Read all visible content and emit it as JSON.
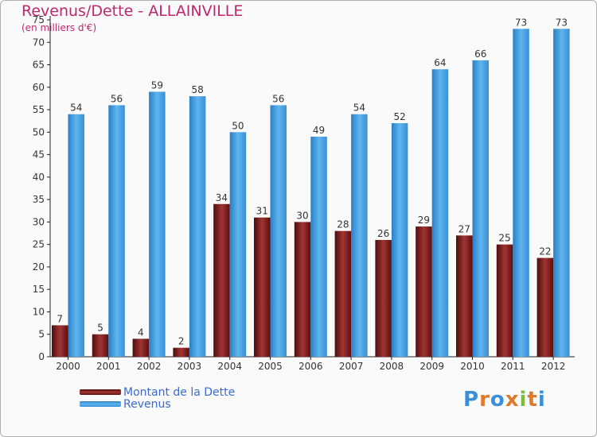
{
  "chart_data": {
    "type": "bar",
    "title": "Revenus/Dette - ALLAINVILLE",
    "subtitle": "(en milliers d'€)",
    "categories": [
      "2000",
      "2001",
      "2002",
      "2003",
      "2004",
      "2005",
      "2006",
      "2007",
      "2008",
      "2009",
      "2010",
      "2011",
      "2012"
    ],
    "series": [
      {
        "name": "Montant de la Dette",
        "values": [
          7,
          5,
          4,
          2,
          34,
          31,
          30,
          28,
          26,
          29,
          27,
          25,
          22
        ],
        "color": "#7a1c1c"
      },
      {
        "name": "Revenus",
        "values": [
          54,
          56,
          59,
          58,
          50,
          56,
          49,
          54,
          52,
          64,
          66,
          73,
          73
        ],
        "color": "#4aa0e4"
      }
    ],
    "yticks": [
      0,
      5,
      10,
      15,
      20,
      25,
      30,
      35,
      40,
      45,
      50,
      55,
      60,
      65,
      70,
      75
    ],
    "ylim": [
      0,
      75
    ],
    "grid": false,
    "legend": "bottom-left"
  },
  "logo": {
    "letters": [
      "P",
      "r",
      "o",
      "x",
      "i",
      "t",
      "i"
    ],
    "colors": [
      "#3a8fd8",
      "#e0792b",
      "#3a8fd8",
      "#e0792b",
      "#7cbd3c",
      "#e0792b",
      "#3a8fd8"
    ]
  }
}
